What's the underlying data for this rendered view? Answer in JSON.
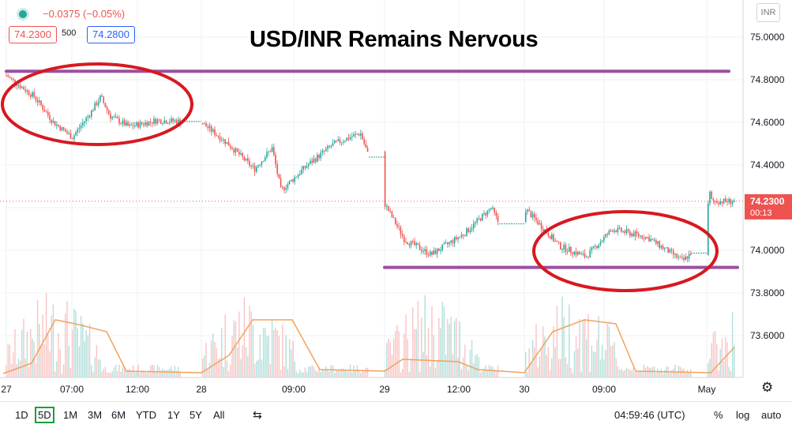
{
  "header": {
    "change": "−0.0375 (−0.05%)",
    "bid": "74.2300",
    "spread": "500",
    "ask": "74.2800",
    "currency": "INR"
  },
  "chart_data": {
    "type": "candlestick",
    "title": "USD/INR Remains Nervous",
    "y_ticks": [
      "75.0000",
      "74.8000",
      "74.6000",
      "74.4000",
      "74.2000",
      "74.0000",
      "73.8000",
      "73.6000"
    ],
    "x_ticks": [
      "27",
      "07:00",
      "12:00",
      "28",
      "09:00",
      "29",
      "12:00",
      "30",
      "09:00",
      "May"
    ],
    "ylim": [
      73.5,
      75.1
    ],
    "last_price": "74.2300",
    "countdown": "00:13",
    "price_path": [
      {
        "x": "27",
        "y": 74.82
      },
      {
        "x": "27 03:00",
        "y": 74.72
      },
      {
        "x": "27 05:00",
        "y": 74.6
      },
      {
        "x": "27 07:00",
        "y": 74.53
      },
      {
        "x": "27 09:00",
        "y": 74.65
      },
      {
        "x": "27 10:00",
        "y": 74.72
      },
      {
        "x": "27 11:00",
        "y": 74.63
      },
      {
        "x": "27 13:00",
        "y": 74.58
      },
      {
        "x": "27 16:00",
        "y": 74.61
      },
      {
        "x": "28",
        "y": 74.6
      },
      {
        "x": "28 03:00",
        "y": 74.5
      },
      {
        "x": "28 06:00",
        "y": 74.38
      },
      {
        "x": "28 08:00",
        "y": 74.48
      },
      {
        "x": "28 09:00",
        "y": 74.28
      },
      {
        "x": "28 12:00",
        "y": 74.4
      },
      {
        "x": "28 15:00",
        "y": 74.5
      },
      {
        "x": "28 18:00",
        "y": 74.55
      },
      {
        "x": "29",
        "y": 74.22
      },
      {
        "x": "29 03:00",
        "y": 74.05
      },
      {
        "x": "29 07:00",
        "y": 73.98
      },
      {
        "x": "29 12:00",
        "y": 74.08
      },
      {
        "x": "29 16:00",
        "y": 74.2
      },
      {
        "x": "29 18:00",
        "y": 74.07
      },
      {
        "x": "30",
        "y": 74.2
      },
      {
        "x": "30 04:00",
        "y": 74.02
      },
      {
        "x": "30 07:00",
        "y": 73.97
      },
      {
        "x": "30 10:00",
        "y": 74.1
      },
      {
        "x": "30 14:00",
        "y": 74.06
      },
      {
        "x": "30 18:00",
        "y": 73.95
      },
      {
        "x": "30 20:00",
        "y": 74.03
      },
      {
        "x": "May",
        "y": 74.12
      },
      {
        "x": "May 02:00",
        "y": 74.28
      },
      {
        "x": "May 04:00",
        "y": 74.23
      }
    ],
    "resistance_level": 74.84,
    "support_level": 73.92,
    "legend": "none",
    "grid": true
  },
  "toolbar": {
    "timeframes": [
      "1D",
      "5D",
      "1M",
      "3M",
      "6M",
      "YTD",
      "1Y",
      "5Y",
      "All"
    ],
    "selected": "5D",
    "time": "04:59:46 (UTC)",
    "percent": "%",
    "log": "log",
    "auto": "auto"
  },
  "colors": {
    "up": "#26a69a",
    "down": "#ef5350",
    "annotation_line": "#9c4fa0",
    "annotation_ellipse": "#d71920",
    "volume_ma": "#f2a25c"
  }
}
